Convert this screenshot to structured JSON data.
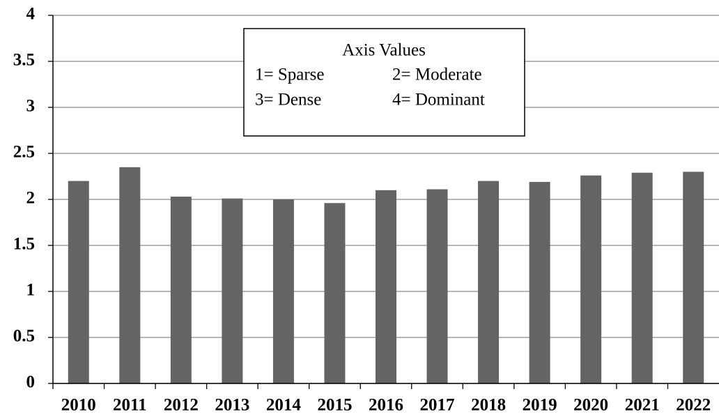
{
  "chart_data": {
    "type": "bar",
    "categories": [
      "2010",
      "2011",
      "2012",
      "2013",
      "2014",
      "2015",
      "2016",
      "2017",
      "2018",
      "2019",
      "2020",
      "2021",
      "2022"
    ],
    "values": [
      2.2,
      2.35,
      2.03,
      2.01,
      2.0,
      1.96,
      2.1,
      2.11,
      2.2,
      2.19,
      2.26,
      2.29,
      2.3
    ],
    "color": "#646464",
    "ylim": [
      0,
      4
    ],
    "yticks": [
      0,
      0.5,
      1,
      1.5,
      2,
      2.5,
      3,
      3.5,
      4
    ],
    "grid": true,
    "annotations": {
      "title": "Axis Values",
      "items": [
        "1= Sparse",
        "2= Moderate",
        "3= Dense",
        "4= Dominant"
      ]
    }
  }
}
